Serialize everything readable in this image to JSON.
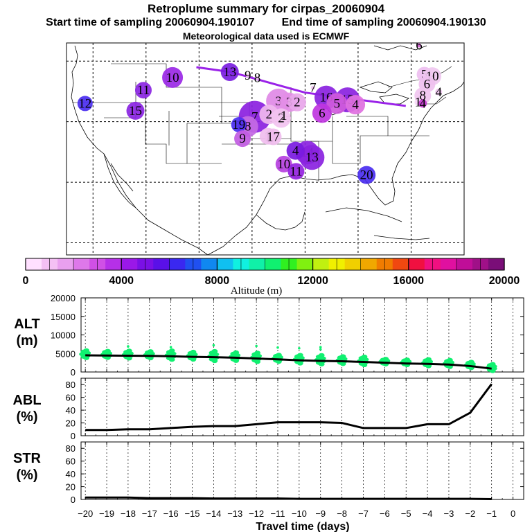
{
  "header": {
    "title": "Retroplume summary for cirpas_20060904",
    "start_label": "Start time of sampling 20060904.190107",
    "end_label": "End time of sampling 20060904.190130",
    "met_label": "Meteorological data used is ECMWF"
  },
  "map": {
    "plume_path": [
      [
        -110.5,
        49.0
      ],
      [
        -104.0,
        48.2
      ],
      [
        -90.0,
        44.8
      ],
      [
        -71.0,
        42.6
      ]
    ],
    "plumes": [
      {
        "day": "13",
        "lon": -104.2,
        "lat": 48.2,
        "r": 13,
        "color": "#7a1de0"
      },
      {
        "day": "9",
        "lon": -100.8,
        "lat": 47.6,
        "r": 3,
        "color": "#efc6ef"
      },
      {
        "day": "8",
        "lon": -99.0,
        "lat": 47.2,
        "r": 3,
        "color": "#efc6ef"
      },
      {
        "day": "10",
        "lon": -115.0,
        "lat": 47.3,
        "r": 15,
        "color": "#9a28e6"
      },
      {
        "day": "11",
        "lon": -120.5,
        "lat": 45.2,
        "r": 12,
        "color": "#8a24e2"
      },
      {
        "day": "12",
        "lon": -131.5,
        "lat": 43.0,
        "r": 11,
        "color": "#4a2ef0"
      },
      {
        "day": "15",
        "lon": -122.0,
        "lat": 41.8,
        "r": 13,
        "color": "#8a24e2"
      },
      {
        "day": "7",
        "lon": -88.5,
        "lat": 45.6,
        "r": 3,
        "color": "#efc6ef"
      },
      {
        "day": "16",
        "lon": -86.0,
        "lat": 44.0,
        "r": 17,
        "color": "#8a22e0"
      },
      {
        "day": "15",
        "lon": -82.0,
        "lat": 43.6,
        "r": 18,
        "color": "#8a22e0"
      },
      {
        "day": "5",
        "lon": -84.0,
        "lat": 43.0,
        "r": 15,
        "color": "#cf5adc"
      },
      {
        "day": "4",
        "lon": -80.5,
        "lat": 42.8,
        "r": 14,
        "color": "#e070e0"
      },
      {
        "day": "3",
        "lon": -95.0,
        "lat": 43.4,
        "r": 18,
        "color": "#e089e6"
      },
      {
        "day": "3",
        "lon": -93.0,
        "lat": 43.2,
        "r": 14,
        "color": "#e38ee6"
      },
      {
        "day": "2",
        "lon": -91.5,
        "lat": 43.2,
        "r": 13,
        "color": "#e8a6ea"
      },
      {
        "day": "6",
        "lon": -86.8,
        "lat": 41.4,
        "r": 14,
        "color": "#bf35e0"
      },
      {
        "day": "7",
        "lon": -99.5,
        "lat": 40.8,
        "r": 23,
        "color": "#8b1fdf"
      },
      {
        "day": "2",
        "lon": -96.8,
        "lat": 41.2,
        "r": 14,
        "color": "#f0b9ee"
      },
      {
        "day": "2",
        "lon": -94.5,
        "lat": 40.6,
        "r": 14,
        "color": "#f2c2f0"
      },
      {
        "day": "1",
        "lon": -94.0,
        "lat": 41.0,
        "r": 3,
        "color": "#efc6ef"
      },
      {
        "day": "8",
        "lon": -100.8,
        "lat": 39.2,
        "r": 15,
        "color": "#c46ae4"
      },
      {
        "day": "19",
        "lon": -102.5,
        "lat": 39.5,
        "r": 11,
        "color": "#4a2ef0"
      },
      {
        "day": "9",
        "lon": -101.8,
        "lat": 37.2,
        "r": 12,
        "color": "#c15be2"
      },
      {
        "day": "1",
        "lon": -97.0,
        "lat": 37.6,
        "r": 12,
        "color": "#f0bdee"
      },
      {
        "day": "17",
        "lon": -96.0,
        "lat": 37.5,
        "r": 12,
        "color": "#f0bdee"
      },
      {
        "day": "14",
        "lon": -89.6,
        "lat": 34.9,
        "r": 17,
        "color": "#8a22e0"
      },
      {
        "day": "13",
        "lon": -88.7,
        "lat": 34.1,
        "r": 18,
        "color": "#8a22e0"
      },
      {
        "day": "4",
        "lon": -91.8,
        "lat": 35.2,
        "r": 13,
        "color": "#7a1ae0"
      },
      {
        "day": "10",
        "lon": -94.0,
        "lat": 33.0,
        "r": 12,
        "color": "#b640e0"
      },
      {
        "day": "11",
        "lon": -91.7,
        "lat": 31.8,
        "r": 12,
        "color": "#9522e0"
      },
      {
        "day": "20",
        "lon": -78.4,
        "lat": 31.2,
        "r": 13,
        "color": "#4a2ef0"
      },
      {
        "day": "5",
        "lon": -67.5,
        "lat": 47.8,
        "r": 11,
        "color": "#eebef0"
      },
      {
        "day": "10",
        "lon": -66.0,
        "lat": 47.5,
        "r": 13,
        "color": "#f0c8f0"
      },
      {
        "day": "6",
        "lon": -67.0,
        "lat": 46.2,
        "r": 12,
        "color": "#efc0ef"
      },
      {
        "day": "4",
        "lon": -64.8,
        "lat": 44.9,
        "r": 5,
        "color": "#efc6ef"
      },
      {
        "day": "8",
        "lon": -67.8,
        "lat": 44.3,
        "r": 12,
        "color": "#f1c5f0"
      },
      {
        "day": "1",
        "lon": -68.7,
        "lat": 43.2,
        "r": 5,
        "color": "#f7d9f7"
      },
      {
        "day": "4",
        "lon": -67.8,
        "lat": 43.0,
        "r": 6,
        "color": "#c43ad0"
      },
      {
        "day": "6",
        "lon": -68.5,
        "lat": 52.6,
        "r": 3,
        "color": "#d060d0"
      }
    ]
  },
  "colorbar": {
    "min": 0,
    "max": 20000,
    "step": 1000,
    "tick_labels": [
      "0",
      "4000",
      "8000",
      "12000",
      "16000",
      "20000"
    ],
    "label": "Altitude (m)",
    "colors": [
      "#ffe0ff",
      "#f4c0f4",
      "#e9a0ef",
      "#de78ea",
      "#d050e6",
      "#b630e8",
      "#9a18e8",
      "#7a10e6",
      "#5a10e8",
      "#3a28f0",
      "#2050f0",
      "#1088f0",
      "#10c0f0",
      "#10f0e0",
      "#10f0a8",
      "#10f070",
      "#30f020",
      "#80f010",
      "#c0f010",
      "#f0f000",
      "#f0d000",
      "#f0a800",
      "#f07c00",
      "#f04810",
      "#f01040",
      "#f01080",
      "#e010a0",
      "#c00e98",
      "#a01088",
      "#7a0e78"
    ]
  },
  "chart_data": [
    {
      "type": "line",
      "panel": "altitude",
      "ylabel_line1": "ALT",
      "ylabel_line2": "(m)",
      "ylim": [
        0,
        20000
      ],
      "yticks": [
        "0",
        "5000",
        "10000",
        "15000",
        "20000"
      ],
      "x": [
        -20,
        -19,
        -18,
        -17,
        -16,
        -15,
        -14,
        -13,
        -12,
        -11,
        -10,
        -9,
        -8,
        -7,
        -6,
        -5,
        -4,
        -3,
        -2,
        -1
      ],
      "values": [
        4500,
        4450,
        4400,
        4350,
        4250,
        4100,
        4000,
        3850,
        3650,
        3400,
        3150,
        3000,
        2900,
        2700,
        2500,
        2300,
        2200,
        2000,
        1600,
        900
      ],
      "scatter_spread": [
        1000,
        900,
        1000,
        900,
        1200,
        1000,
        1300,
        1100,
        1200,
        900,
        1100,
        1200,
        1000,
        1100,
        700,
        700,
        900,
        900,
        800,
        900
      ],
      "scatter_outliers": [
        [
          -18,
          6900
        ],
        [
          -16,
          6700
        ],
        [
          -14,
          7200
        ],
        [
          -12,
          7000
        ],
        [
          -11,
          6600
        ],
        [
          -10,
          6400
        ],
        [
          -9,
          6100
        ],
        [
          -9,
          6700
        ]
      ],
      "color": "#10f070"
    },
    {
      "type": "line",
      "panel": "abl",
      "ylabel_line1": "ABL",
      "ylabel_line2": "(%)",
      "ylim": [
        0,
        90
      ],
      "yticks": [
        "0",
        "20",
        "40",
        "60",
        "80"
      ],
      "x": [
        -20,
        -19,
        -18,
        -17,
        -16,
        -15,
        -14,
        -13,
        -12,
        -11,
        -10,
        -9,
        -8,
        -7,
        -6,
        -5,
        -4,
        -3,
        -2,
        -1
      ],
      "values": [
        9,
        9,
        10,
        10,
        12,
        14,
        15,
        15,
        18,
        21,
        21,
        21,
        20,
        12,
        12,
        12,
        18,
        18,
        36,
        81
      ]
    },
    {
      "type": "line",
      "panel": "str",
      "ylabel_line1": "STR",
      "ylabel_line2": "(%)",
      "ylim": [
        0,
        90
      ],
      "yticks": [
        "0",
        "20",
        "40",
        "60",
        "80"
      ],
      "x": [
        -20,
        -19,
        -18,
        -17,
        -16,
        -15,
        -14,
        -13,
        -12,
        -11,
        -10,
        -9,
        -8,
        -7,
        -6,
        -5,
        -4,
        -3,
        -2,
        -1
      ],
      "values": [
        3,
        3,
        3,
        2,
        2,
        2,
        1.5,
        1.5,
        1.5,
        1.5,
        1,
        1,
        1,
        1,
        1,
        1,
        1,
        1,
        1,
        0.5
      ],
      "xlabel": "Travel time (days)",
      "xtick_labels": [
        "−20",
        "−19",
        "−18",
        "−17",
        "−16",
        "−15",
        "−14",
        "−13",
        "−12",
        "−11",
        "−10",
        "−9",
        "−8",
        "−7",
        "−6",
        "−5",
        "−4",
        "−3",
        "−2",
        "−1",
        "0"
      ]
    }
  ]
}
